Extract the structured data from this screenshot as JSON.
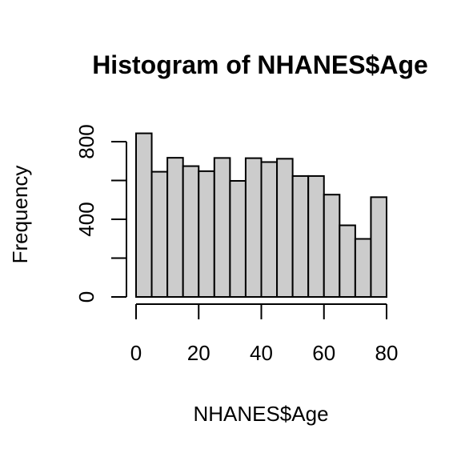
{
  "chart_data": {
    "type": "bar",
    "title": "Histogram of NHANES$Age",
    "xlabel": "NHANES$Age",
    "ylabel": "Frequency",
    "bin_edges": [
      0,
      5,
      10,
      15,
      20,
      25,
      30,
      35,
      40,
      45,
      50,
      55,
      60,
      65,
      70,
      75,
      80
    ],
    "values": [
      843,
      645,
      717,
      674,
      648,
      716,
      598,
      715,
      695,
      712,
      623,
      623,
      527,
      369,
      299,
      514
    ],
    "xlim": [
      0,
      80
    ],
    "ylim": [
      0,
      850
    ],
    "x_ticks": [
      0,
      20,
      40,
      60,
      80
    ],
    "x_tick_labels": [
      "0",
      "20",
      "40",
      "60",
      "80"
    ],
    "y_ticks": [
      0,
      200,
      400,
      600,
      800
    ],
    "y_tick_labels": [
      "0",
      "",
      "400",
      "",
      "800"
    ],
    "bar_color": "#cccccc",
    "grid": false,
    "legend": "none"
  }
}
